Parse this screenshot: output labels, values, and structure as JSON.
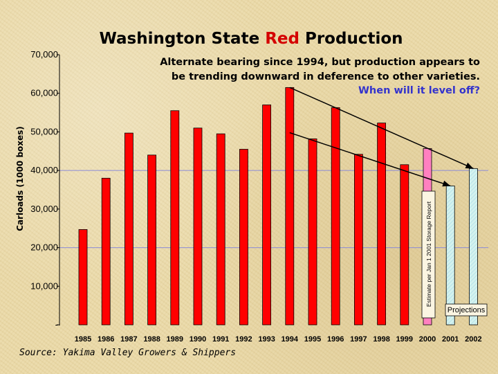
{
  "chart_data": {
    "type": "bar",
    "title_parts": [
      "Washington State ",
      "Red",
      " Production"
    ],
    "ylabel": "Carloads (1000 boxes)",
    "ylim": [
      0,
      70000
    ],
    "yticks": [
      0,
      10000,
      20000,
      30000,
      40000,
      50000,
      60000,
      70000
    ],
    "ytick_labels": [
      "-",
      "10,000",
      "20,000",
      "30,000",
      "40,000",
      "50,000",
      "60,000",
      "70,000"
    ],
    "gridlines": [
      20000,
      40000
    ],
    "categories": [
      "1985",
      "1986",
      "1987",
      "1988",
      "1989",
      "1990",
      "1991",
      "1992",
      "1993",
      "1994",
      "1995",
      "1996",
      "1997",
      "1998",
      "1999",
      "2000",
      "2001",
      "2002"
    ],
    "values": [
      24700,
      38000,
      49700,
      44000,
      55500,
      51000,
      49500,
      45500,
      57000,
      61500,
      48200,
      56300,
      44200,
      52300,
      41500,
      45700,
      36000,
      40500
    ],
    "kinds": [
      "actual",
      "actual",
      "actual",
      "actual",
      "actual",
      "actual",
      "actual",
      "actual",
      "actual",
      "actual",
      "actual",
      "actual",
      "actual",
      "actual",
      "actual",
      "estimate",
      "projection",
      "projection"
    ],
    "colors": {
      "actual": "#ff0000",
      "estimate": "#ff80c0",
      "projection_a": "#b7e3ea",
      "projection_b": "#d4f2ee",
      "gridline": "#8a8ad8"
    },
    "annotation_lines": [
      "Alternate bearing since 1994, but production appears to",
      "be trending downward in deference to other varieties."
    ],
    "annotation_question": "When will it level off?",
    "estimate_note": "Estimate per Jan 1 2001 Storage Report",
    "projections_label": "Projections",
    "trend_lines": [
      {
        "from_year": "1994",
        "from_value": 61500,
        "to_year": "2002",
        "to_value": 40500
      },
      {
        "from_year": "1994",
        "from_value": 49800,
        "to_year": "2001",
        "to_value": 36000
      }
    ]
  },
  "source": "Source: Yakima Valley Growers & Shippers"
}
